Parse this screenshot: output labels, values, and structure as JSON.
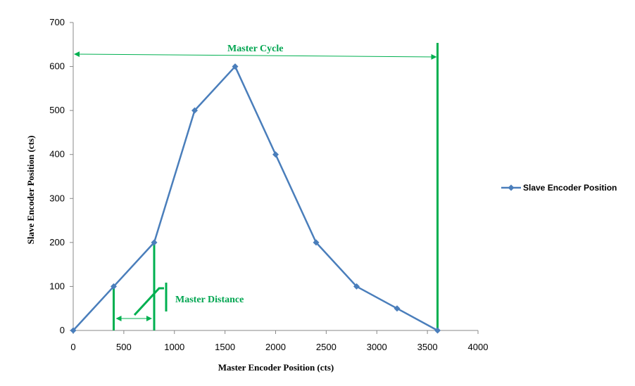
{
  "colors": {
    "series": "#4A7EBB",
    "annotation": "#00B050",
    "annotation_text": "#00A550",
    "axis": "#888888"
  },
  "chart_data": {
    "type": "line",
    "xlabel": "Master Encoder Position (cts)",
    "ylabel": "Slave Encoder Position (cts)",
    "xlim": [
      0,
      4000
    ],
    "ylim": [
      0,
      700
    ],
    "xticks": [
      0,
      500,
      1000,
      1500,
      2000,
      2500,
      3000,
      3500,
      4000
    ],
    "yticks": [
      0,
      100,
      200,
      300,
      400,
      500,
      600,
      700
    ],
    "grid": false,
    "legend_position": "right",
    "marker": "diamond",
    "series": [
      {
        "name": "Slave Encoder  Position",
        "x": [
          0,
          400,
          800,
          1200,
          1600,
          2000,
          2400,
          2800,
          3200,
          3600
        ],
        "y": [
          0,
          100,
          200,
          500,
          600,
          400,
          200,
          100,
          50,
          0
        ]
      }
    ],
    "annotations": [
      {
        "text": "Master Cycle",
        "type": "span-arrow",
        "x_from": 0,
        "x_to": 3600
      },
      {
        "text": "Master Distance",
        "type": "span-arrow",
        "x_from": 400,
        "x_to": 800
      }
    ]
  }
}
